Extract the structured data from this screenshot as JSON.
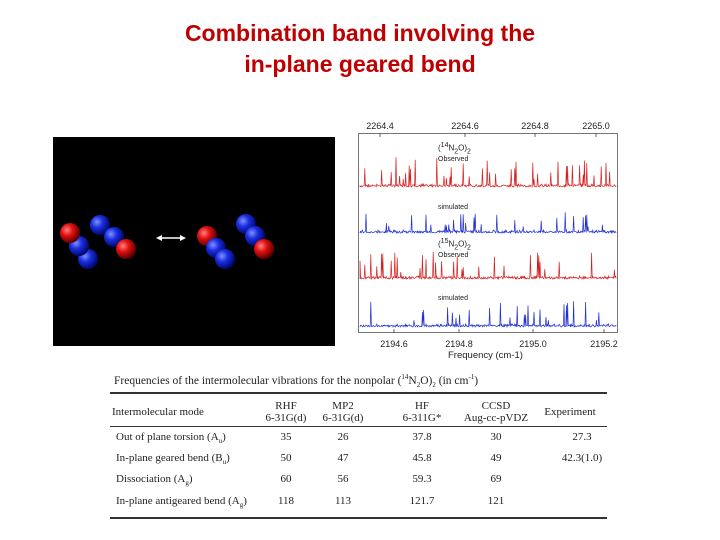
{
  "slide": {
    "title_line1": "Combination band involving the",
    "title_line2": "in-plane geared bend"
  },
  "spectrum": {
    "top_ticks": [
      "2264.4",
      "2264.6",
      "2264.8",
      "2265.0"
    ],
    "bottom_ticks": [
      "2194.6",
      "2194.8",
      "2195.0",
      "2195.2"
    ],
    "x_axis_label": "Frequency (cm-1)",
    "panels": [
      {
        "species_prefix": "(",
        "species_iso": "14",
        "species_rest": "N",
        "species_sub": "2",
        "species_end": "O)",
        "species_sub2": "2",
        "label": "Observed",
        "color": "#d62020"
      },
      {
        "label": "simulated",
        "color": "#1f2fd0"
      },
      {
        "species_prefix": "(",
        "species_iso": "15",
        "species_rest": "N",
        "species_sub": "2",
        "species_end": "O)",
        "species_sub2": "2",
        "label": "Observed",
        "color": "#d62020"
      },
      {
        "label": "simulated",
        "color": "#1f2fd0"
      }
    ],
    "colors": {
      "observed": "#d62020",
      "simulated": "#1f2fd0"
    }
  },
  "table": {
    "caption_pre": "Frequencies of the intermolecular vibrations for the nonpolar (",
    "caption_iso": "14",
    "caption_mid": "N",
    "caption_sub": "2",
    "caption_post": "O)",
    "caption_sub2": "2",
    "caption_end": " (in cm",
    "caption_sup": "-1",
    "caption_close": ")",
    "headers": {
      "mode": "Intermolecular mode",
      "rhf": [
        "RHF",
        "6-31G(d)"
      ],
      "mp2": [
        "MP2",
        "6-31G(d)"
      ],
      "hf": [
        "HF",
        "6-311G*"
      ],
      "ccsd": [
        "CCSD",
        "Aug-cc-pVDZ"
      ],
      "exp": "Experiment"
    },
    "rows": [
      {
        "mode": "Out of plane torsion (A",
        "sub": "u",
        "close": ")",
        "rhf": "35",
        "mp2": "26",
        "hf": "37.8",
        "ccsd": "30",
        "exp": "27.3"
      },
      {
        "mode": "In-plane geared bend (B",
        "sub": "u",
        "close": ")",
        "rhf": "50",
        "mp2": "47",
        "hf": "45.8",
        "ccsd": "49",
        "exp": "42.3(1.0)"
      },
      {
        "mode": "Dissociation (A",
        "sub": "g",
        "close": ")",
        "rhf": "60",
        "mp2": "56",
        "hf": "59.3",
        "ccsd": "69",
        "exp": ""
      },
      {
        "mode": "In-plane antigeared bend (A",
        "sub": "g",
        "close": ")",
        "rhf": "118",
        "mp2": "113",
        "hf": "121.7",
        "ccsd": "121",
        "exp": ""
      }
    ]
  }
}
